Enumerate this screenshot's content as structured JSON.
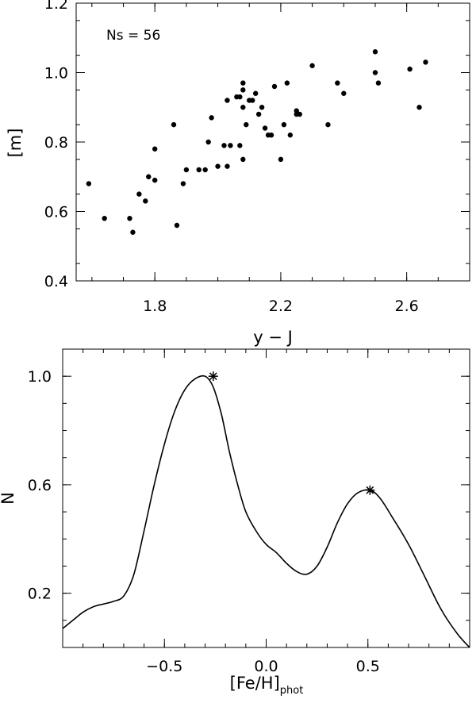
{
  "chart_data": [
    {
      "type": "scatter",
      "xlabel": "y − J",
      "ylabel": "[m]",
      "annotation": "Ns = 56",
      "xlim": [
        1.55,
        2.8
      ],
      "ylim": [
        0.4,
        1.2
      ],
      "xticks": [
        1.8,
        2.2,
        2.6
      ],
      "xtick_labels": [
        "1.8",
        "2.2",
        "2.6"
      ],
      "yticks": [
        0.4,
        0.6,
        0.8,
        1.0,
        1.2
      ],
      "ytick_labels": [
        "0.4",
        "0.6",
        "0.8",
        "1.0",
        "1.2"
      ],
      "grid": false,
      "points": [
        [
          1.59,
          0.68
        ],
        [
          1.64,
          0.58
        ],
        [
          1.72,
          0.58
        ],
        [
          1.73,
          0.54
        ],
        [
          1.75,
          0.65
        ],
        [
          1.77,
          0.63
        ],
        [
          1.78,
          0.7
        ],
        [
          1.8,
          0.69
        ],
        [
          1.8,
          0.78
        ],
        [
          1.86,
          0.85
        ],
        [
          1.87,
          0.56
        ],
        [
          1.89,
          0.68
        ],
        [
          1.9,
          0.72
        ],
        [
          1.94,
          0.72
        ],
        [
          1.96,
          0.72
        ],
        [
          1.97,
          0.8
        ],
        [
          1.98,
          0.87
        ],
        [
          2.0,
          0.73
        ],
        [
          2.02,
          0.79
        ],
        [
          2.03,
          0.92
        ],
        [
          2.03,
          0.73
        ],
        [
          2.04,
          0.79
        ],
        [
          2.06,
          0.93
        ],
        [
          2.07,
          0.79
        ],
        [
          2.07,
          0.93
        ],
        [
          2.08,
          0.75
        ],
        [
          2.08,
          0.95
        ],
        [
          2.08,
          0.97
        ],
        [
          2.08,
          0.9
        ],
        [
          2.09,
          0.85
        ],
        [
          2.1,
          0.92
        ],
        [
          2.11,
          0.92
        ],
        [
          2.12,
          0.94
        ],
        [
          2.13,
          0.88
        ],
        [
          2.14,
          0.9
        ],
        [
          2.15,
          0.84
        ],
        [
          2.16,
          0.82
        ],
        [
          2.17,
          0.82
        ],
        [
          2.18,
          0.96
        ],
        [
          2.2,
          0.75
        ],
        [
          2.21,
          0.85
        ],
        [
          2.22,
          0.97
        ],
        [
          2.23,
          0.82
        ],
        [
          2.25,
          0.89
        ],
        [
          2.25,
          0.88
        ],
        [
          2.3,
          1.02
        ],
        [
          2.35,
          0.85
        ],
        [
          2.38,
          0.97
        ],
        [
          2.4,
          0.94
        ],
        [
          2.5,
          1.06
        ],
        [
          2.5,
          1.0
        ],
        [
          2.51,
          0.97
        ],
        [
          2.61,
          1.01
        ],
        [
          2.64,
          0.9
        ],
        [
          2.66,
          1.03
        ],
        [
          2.26,
          0.88
        ]
      ]
    },
    {
      "type": "line",
      "xlabel": "[Fe/H]",
      "xlabel_sub": "phot",
      "ylabel": "N",
      "xlim": [
        -1.0,
        1.0
      ],
      "ylim": [
        0.0,
        1.1
      ],
      "xticks": [
        -0.5,
        0.0,
        0.5
      ],
      "xtick_labels": [
        "−0.5",
        "0.0",
        "0.5"
      ],
      "yticks": [
        0.2,
        0.6,
        1.0
      ],
      "ytick_labels": [
        "0.2",
        "0.6",
        "1.0"
      ],
      "grid": false,
      "x": [
        -1.0,
        -0.95,
        -0.9,
        -0.85,
        -0.8,
        -0.75,
        -0.7,
        -0.65,
        -0.6,
        -0.55,
        -0.5,
        -0.45,
        -0.4,
        -0.35,
        -0.3,
        -0.26,
        -0.22,
        -0.18,
        -0.14,
        -0.1,
        -0.05,
        0.0,
        0.05,
        0.1,
        0.15,
        0.2,
        0.25,
        0.3,
        0.35,
        0.4,
        0.45,
        0.51,
        0.56,
        0.62,
        0.7,
        0.78,
        0.86,
        0.94,
        1.0
      ],
      "y": [
        0.07,
        0.1,
        0.13,
        0.15,
        0.16,
        0.17,
        0.19,
        0.27,
        0.43,
        0.6,
        0.75,
        0.87,
        0.95,
        0.99,
        1.0,
        0.96,
        0.86,
        0.72,
        0.6,
        0.5,
        0.43,
        0.38,
        0.35,
        0.31,
        0.28,
        0.27,
        0.3,
        0.37,
        0.46,
        0.53,
        0.57,
        0.58,
        0.55,
        0.48,
        0.38,
        0.26,
        0.14,
        0.05,
        0.0
      ],
      "markers": [
        [
          -0.26,
          1.0
        ],
        [
          0.51,
          0.58
        ]
      ]
    }
  ]
}
